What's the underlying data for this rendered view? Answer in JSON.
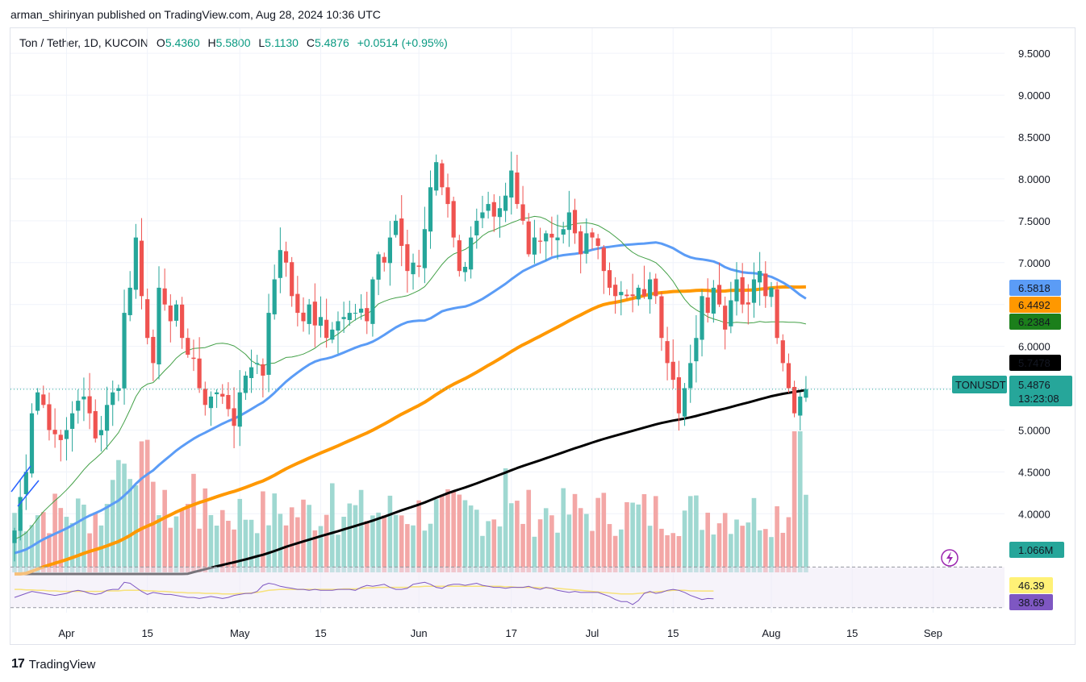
{
  "header": {
    "text": "arman_shirinyan published on TradingView.com, Aug 28, 2024 10:36 UTC"
  },
  "legend": {
    "symbol": "Ton / Tether, 1D, KUCOIN",
    "o_label": "O",
    "o_value": "5.4360",
    "h_label": "H",
    "h_value": "5.5800",
    "l_label": "L",
    "l_value": "5.1130",
    "c_label": "C",
    "c_value": "5.4876",
    "change": "+0.0514 (+0.95%)"
  },
  "footer": {
    "brand": "TradingView",
    "logo_text": "17"
  },
  "colors": {
    "up": "#26a69a",
    "down": "#ef5350",
    "vol_up": "#9fd8d1",
    "vol_down": "#f3a7a6",
    "ma_blue": "#5b9cf6",
    "ma_orange": "#ff9800",
    "ma_green": "#43a047",
    "ma_black": "#000000",
    "rsi": "#7e57c2",
    "rsi_ma": "#f7e27b"
  },
  "chart_data": {
    "type": "candlestick",
    "title": "Ton / Tether, 1D, KUCOIN",
    "ylim": [
      3.3,
      9.8
    ],
    "y_ticks": [
      "9.5000",
      "9.0000",
      "8.5000",
      "8.0000",
      "7.5000",
      "7.0000",
      "6.5000",
      "6.0000",
      "5.5000",
      "5.0000",
      "4.5000",
      "4.0000"
    ],
    "x_tick_labels": [
      "Apr",
      "15",
      "May",
      "15",
      "Jun",
      "17",
      "Jul",
      "15",
      "Aug",
      "15",
      "Sep"
    ],
    "x_tick_days": [
      9,
      23,
      39,
      53,
      70,
      86,
      100,
      114,
      131,
      145,
      159
    ],
    "closes": [
      3.8,
      4.2,
      4.5,
      5.2,
      5.45,
      5.3,
      5.0,
      4.95,
      4.88,
      5.0,
      5.2,
      5.35,
      5.4,
      5.2,
      4.9,
      5.0,
      5.3,
      5.45,
      5.5,
      6.4,
      6.7,
      7.3,
      6.6,
      6.1,
      5.8,
      6.7,
      6.5,
      6.3,
      6.5,
      6.1,
      5.9,
      5.85,
      5.5,
      5.3,
      5.4,
      5.45,
      5.4,
      5.25,
      5.05,
      5.45,
      5.65,
      5.75,
      5.8,
      5.65,
      6.4,
      6.8,
      7.15,
      7.0,
      6.6,
      6.4,
      6.3,
      6.5,
      6.25,
      6.35,
      6.1,
      6.2,
      6.3,
      6.35,
      6.4,
      6.4,
      6.45,
      6.3,
      6.8,
      7.1,
      7.0,
      7.3,
      7.5,
      7.2,
      6.9,
      7.0,
      6.95,
      7.4,
      7.9,
      8.2,
      7.9,
      7.7,
      7.3,
      6.9,
      6.95,
      7.3,
      7.5,
      7.6,
      7.7,
      7.55,
      7.65,
      7.8,
      8.1,
      7.7,
      7.5,
      7.1,
      7.3,
      7.25,
      7.35,
      7.3,
      7.3,
      7.4,
      7.6,
      7.35,
      7.1,
      7.35,
      7.3,
      7.2,
      6.9,
      6.7,
      6.6,
      6.65,
      6.6,
      6.6,
      6.7,
      6.6,
      6.8,
      6.6,
      6.1,
      5.8,
      5.6,
      5.2,
      5.5,
      5.8,
      6.1,
      6.6,
      6.4,
      6.7,
      6.5,
      6.2,
      6.55,
      6.8,
      6.5,
      6.5,
      6.8,
      6.9,
      6.6,
      6.7,
      6.1,
      5.8,
      5.5,
      5.2,
      5.4,
      5.4876
    ],
    "volume_unit": "M",
    "volume_last": "1.066M",
    "rsi_values": [
      40,
      42,
      44,
      46,
      45,
      44,
      43,
      42,
      43,
      44,
      46,
      47,
      46,
      44,
      43,
      44,
      47,
      48,
      48,
      55,
      54,
      50,
      46,
      43,
      45,
      44,
      43,
      43,
      42,
      41,
      40,
      40,
      39,
      40,
      41,
      40,
      39,
      40,
      42,
      43,
      44,
      44,
      46,
      52,
      54,
      53,
      51,
      50,
      49,
      48,
      48,
      47,
      48,
      47,
      47,
      47,
      48,
      48,
      48,
      47,
      50,
      52,
      51,
      52,
      53,
      50,
      48,
      48,
      49,
      53,
      54,
      55,
      53,
      50,
      49,
      52,
      53,
      53,
      52,
      53,
      54,
      52,
      51,
      50,
      50,
      49,
      50,
      50,
      50,
      51,
      49,
      48,
      50,
      49,
      47,
      46,
      45,
      46,
      45,
      45,
      45,
      45,
      43,
      41,
      38,
      36,
      36,
      33,
      37,
      44,
      46,
      44,
      45,
      47,
      48,
      47,
      45,
      42,
      40,
      38,
      39,
      38.69
    ],
    "rsi_ma_values": [
      48,
      48,
      47.5,
      47.5,
      47,
      47,
      46.5,
      46.5,
      46,
      46,
      46,
      46,
      46,
      46,
      46,
      46,
      46.5,
      46.5,
      46.5,
      47,
      47,
      47,
      47,
      46.5,
      46.5,
      46,
      46,
      45.5,
      45,
      45,
      44.5,
      44.5,
      44.5,
      44,
      44,
      44,
      43.5,
      43.5,
      43.5,
      44,
      44,
      44.5,
      45,
      46,
      47,
      47.5,
      48,
      48,
      48,
      48,
      48,
      48,
      48,
      48,
      48,
      48,
      48,
      48.5,
      48.5,
      48.5,
      49,
      49.5,
      49.5,
      50,
      50,
      50,
      50,
      50,
      50,
      50.5,
      50.5,
      51,
      51,
      51,
      51,
      51,
      51,
      51,
      51,
      51,
      51,
      51,
      51,
      51,
      51,
      50.5,
      50.5,
      50,
      50,
      50,
      50,
      49.5,
      49.5,
      49,
      49,
      48.5,
      48,
      47.5,
      47,
      46.5,
      46,
      45.5,
      45,
      44.5,
      44,
      43.5,
      43.5,
      43.5,
      44,
      44.5,
      45,
      45.5,
      46,
      46.5,
      47,
      47,
      47,
      46.5,
      46.5,
      46.4,
      46.4,
      46.39
    ],
    "ma_last": [
      {
        "name": "MA blue",
        "value": "6.5818"
      },
      {
        "name": "MA orange",
        "value": "6.4492"
      },
      {
        "name": "MA green",
        "value": "6.2384"
      },
      {
        "name": "MA black",
        "value": "5.7478"
      }
    ],
    "rsi_last": "38.69",
    "rsi_ma_last": "46.39",
    "ticker": "TONUSDT",
    "price_last": "5.4876",
    "countdown": "13:23:08"
  }
}
